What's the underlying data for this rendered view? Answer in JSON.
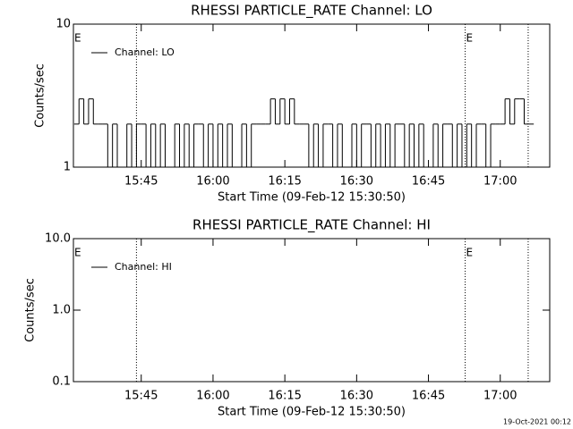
{
  "chart_data": [
    {
      "type": "line",
      "title": "RHESSI PARTICLE_RATE Channel: LO",
      "ylabel": "Counts/sec",
      "xlabel": "Start Time (09-Feb-12 15:30:50)",
      "log_y": true,
      "ylim": [
        1,
        10
      ],
      "yticks": [
        1,
        10
      ],
      "xlim": [
        "15:30:50",
        "17:10:20"
      ],
      "xticks": [
        "15:45",
        "16:00",
        "16:15",
        "16:30",
        "16:45",
        "17:00"
      ],
      "vlines": [
        "15:44:00",
        "16:52:40",
        "17:05:50"
      ],
      "annotations": [
        {
          "text": "E",
          "x": "15:30:50"
        },
        {
          "text": "E",
          "x": "16:52:40"
        }
      ],
      "legend": "upper left",
      "series": [
        {
          "name": "Channel: LO",
          "color": "#000000",
          "x": [
            "15:31",
            "15:32",
            "15:33",
            "15:34",
            "15:35",
            "15:36",
            "15:37",
            "15:38",
            "15:39",
            "15:40",
            "15:41",
            "15:42",
            "15:43",
            "15:44",
            "15:45",
            "15:46",
            "15:47",
            "15:48",
            "15:49",
            "15:50",
            "15:51",
            "15:52",
            "15:53",
            "15:54",
            "15:55",
            "15:56",
            "15:57",
            "15:58",
            "15:59",
            "16:00",
            "16:01",
            "16:02",
            "16:03",
            "16:04",
            "16:05",
            "16:06",
            "16:07",
            "16:08",
            "16:09",
            "16:10",
            "16:11",
            "16:12",
            "16:13",
            "16:14",
            "16:15",
            "16:16",
            "16:17",
            "16:18",
            "16:19",
            "16:20",
            "16:21",
            "16:22",
            "16:23",
            "16:24",
            "16:25",
            "16:26",
            "16:27",
            "16:28",
            "16:29",
            "16:30",
            "16:31",
            "16:32",
            "16:33",
            "16:34",
            "16:35",
            "16:36",
            "16:37",
            "16:38",
            "16:39",
            "16:40",
            "16:41",
            "16:42",
            "16:43",
            "16:44",
            "16:45",
            "16:46",
            "16:47",
            "16:48",
            "16:49",
            "16:50",
            "16:51",
            "16:52",
            "16:53",
            "16:54",
            "16:55",
            "16:56",
            "16:57",
            "16:58",
            "16:59",
            "17:00",
            "17:01",
            "17:02",
            "17:03",
            "17:04",
            "17:05",
            "17:06"
          ],
          "values": [
            2,
            3,
            2,
            3,
            2,
            2,
            2,
            1,
            2,
            1,
            1,
            2,
            1,
            2,
            2,
            1,
            2,
            1,
            2,
            1,
            1,
            2,
            1,
            2,
            1,
            2,
            2,
            1,
            2,
            1,
            2,
            1,
            2,
            1,
            1,
            2,
            1,
            2,
            2,
            2,
            2,
            3,
            2,
            3,
            2,
            3,
            2,
            2,
            2,
            1,
            2,
            1,
            2,
            2,
            1,
            2,
            1,
            1,
            2,
            1,
            2,
            2,
            1,
            2,
            1,
            2,
            1,
            2,
            2,
            1,
            2,
            1,
            2,
            1,
            1,
            2,
            1,
            2,
            2,
            1,
            2,
            1,
            2,
            1,
            2,
            2,
            1,
            2,
            2,
            2,
            3,
            2,
            3,
            3,
            2,
            2
          ]
        }
      ]
    },
    {
      "type": "line",
      "title": "RHESSI PARTICLE_RATE Channel: HI",
      "ylabel": "Counts/sec",
      "xlabel": "Start Time (09-Feb-12 15:30:50)",
      "log_y": true,
      "ylim": [
        0.1,
        10
      ],
      "yticks": [
        0.1,
        {
          "value": 1,
          "label": "1.0"
        },
        {
          "value": 10,
          "label": "10.0"
        }
      ],
      "xlim": [
        "15:30:50",
        "17:10:20"
      ],
      "xticks": [
        "15:45",
        "16:00",
        "16:15",
        "16:30",
        "16:45",
        "17:00"
      ],
      "vlines": [
        "15:44:00",
        "16:52:40",
        "17:05:50"
      ],
      "annotations": [
        {
          "text": "E",
          "x": "15:30:50"
        },
        {
          "text": "E",
          "x": "16:52:40"
        }
      ],
      "legend": "upper left",
      "series": [
        {
          "name": "Channel: HI",
          "color": "#000000",
          "x": [],
          "values": []
        }
      ]
    }
  ],
  "footer": "19-Oct-2021 00:12"
}
